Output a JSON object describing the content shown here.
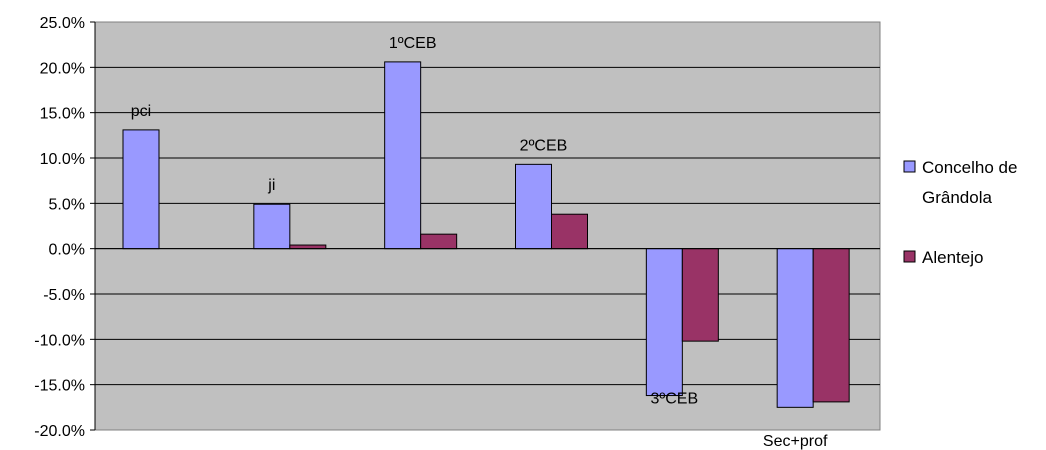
{
  "chart_data": {
    "type": "bar",
    "categories": [
      "pci",
      "ji",
      "1ºCEB",
      "2ºCEB",
      "3ºCEB",
      "Sec+prof"
    ],
    "series": [
      {
        "name": "Concelho de Grândola",
        "color": "#9999ff",
        "values": [
          13.1,
          4.9,
          20.6,
          9.3,
          -16.2,
          -17.5
        ]
      },
      {
        "name": "Alentejo",
        "color": "#993366",
        "values": [
          null,
          0.4,
          1.6,
          3.8,
          -10.2,
          -16.9
        ]
      }
    ],
    "y_ticks": [
      "25.0%",
      "20.0%",
      "15.0%",
      "10.0%",
      "5.0%",
      "0.0%",
      "-5.0%",
      "-10.0%",
      "-15.0%",
      "-20.0%"
    ],
    "ylim": [
      -20,
      25
    ],
    "grid": true,
    "plot_background": "#c0c0c0",
    "legend": {
      "position": "right",
      "entries": [
        {
          "lines": [
            "Concelho de",
            "Grândola"
          ]
        },
        {
          "lines": [
            "Alentejo"
          ]
        }
      ]
    }
  }
}
